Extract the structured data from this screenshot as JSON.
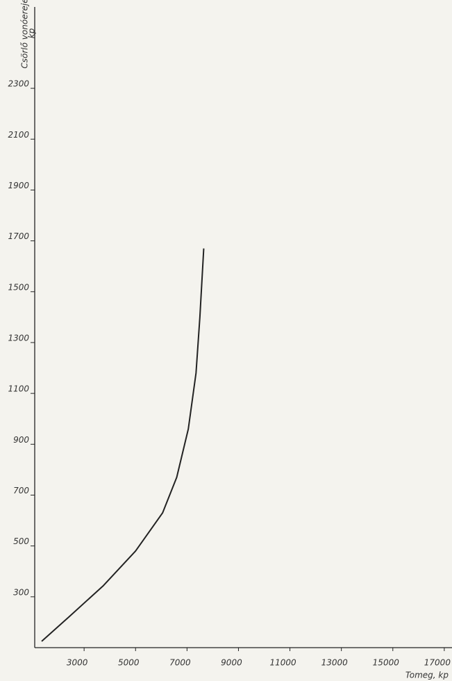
{
  "chart_data": {
    "type": "line",
    "y_label": "Csörlő vonóereje",
    "y_unit": "kp",
    "x_label": "Tomeg, kp",
    "x": [
      1350,
      2400,
      3750,
      5000,
      6050,
      6600,
      7050,
      7350,
      7500,
      7650
    ],
    "series": [
      {
        "color": "#222222",
        "values": [
          125,
          220,
          344,
          480,
          630,
          770,
          960,
          1180,
          1400,
          1670
        ]
      }
    ],
    "xlim": [
      1080,
      17300
    ],
    "xticks": [
      3000,
      5000,
      7000,
      9000,
      11000,
      13000,
      15000,
      17000
    ],
    "ylim": [
      100,
      2620
    ],
    "yticks": [
      300,
      500,
      700,
      900,
      1100,
      1300,
      1500,
      1700,
      1900,
      2100,
      2300
    ],
    "grid": false
  }
}
